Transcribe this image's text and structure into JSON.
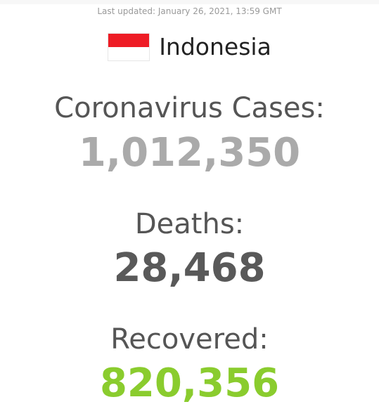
{
  "last_updated": "Last updated: January 26, 2021, 13:59 GMT",
  "country": {
    "name": "Indonesia",
    "flag_icon": "indonesia-flag-icon",
    "flag_colors": {
      "top": "#ee1c25",
      "bottom": "#ffffff"
    }
  },
  "stats": {
    "cases": {
      "label": "Coronavirus Cases:",
      "value": "1,012,350",
      "color": "#aaaaaa"
    },
    "deaths": {
      "label": "Deaths:",
      "value": "28,468",
      "color": "#595959"
    },
    "recovered": {
      "label": "Recovered:",
      "value": "820,356",
      "color": "#8acc2e"
    }
  }
}
